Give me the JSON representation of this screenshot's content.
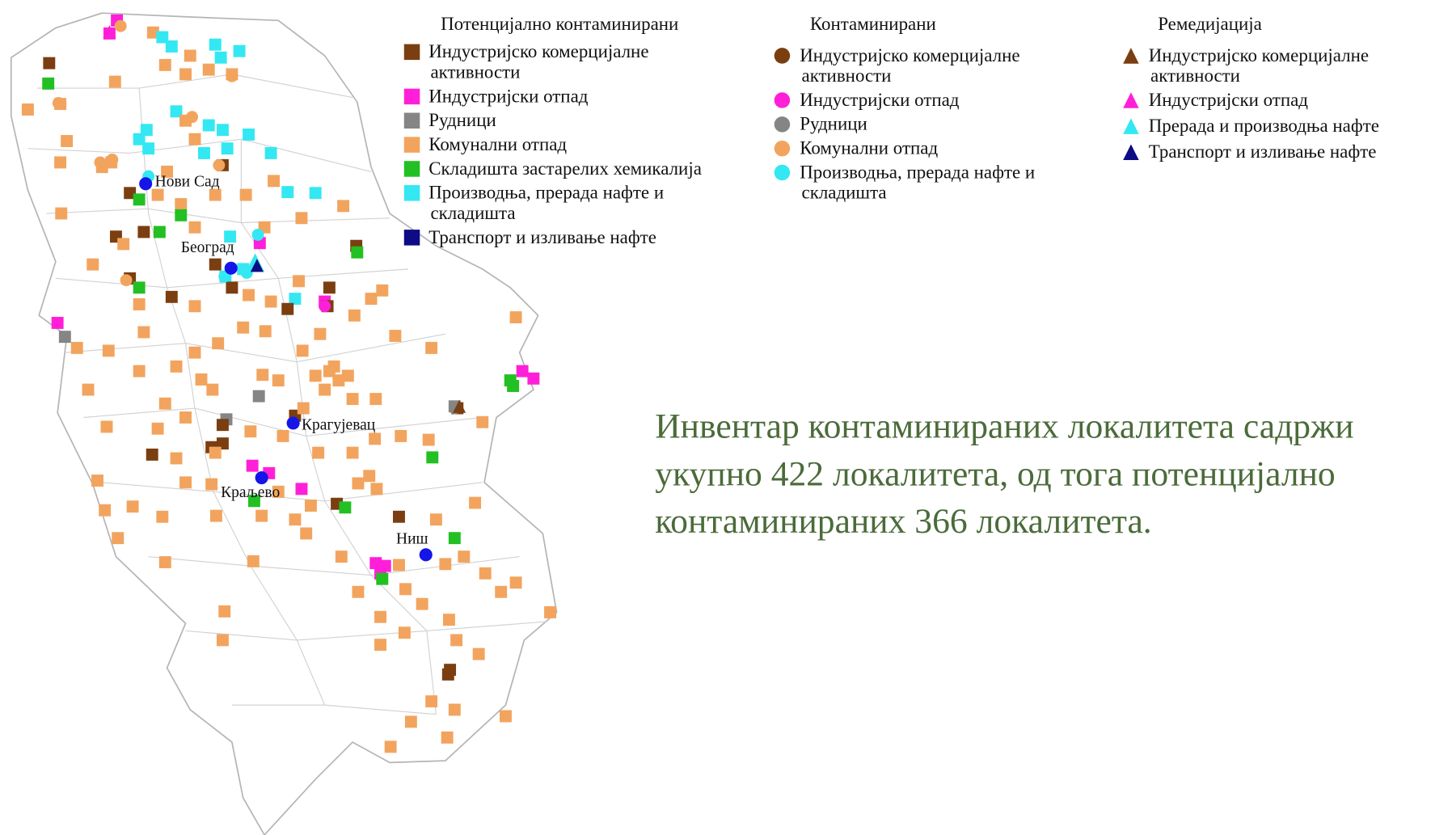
{
  "legend": {
    "groups": [
      {
        "title": "Потенцијално контаминирани",
        "shape": "square",
        "items": [
          {
            "lines": [
              "Индустријско комерцијалне",
              "активности"
            ],
            "color": "#7a3e10"
          },
          {
            "lines": [
              "Индустријски отпад"
            ],
            "color": "#ff1fd8"
          },
          {
            "lines": [
              "Рудници"
            ],
            "color": "#858585"
          },
          {
            "lines": [
              "Комунални отпад"
            ],
            "color": "#f2a45e"
          },
          {
            "lines": [
              "Складишта застарелих хемикалија"
            ],
            "color": "#22c022"
          },
          {
            "lines": [
              "Производња, прерада нафте и",
              "складишта"
            ],
            "color": "#33e8f2"
          },
          {
            "lines": [
              "Транспорт и изливање нафте"
            ],
            "color": "#0c0c85"
          }
        ]
      },
      {
        "title": "Контаминирани",
        "shape": "circle",
        "items": [
          {
            "lines": [
              "Индустријско комерцијалне",
              "активности"
            ],
            "color": "#7a3e10"
          },
          {
            "lines": [
              "Индустријски отпад"
            ],
            "color": "#ff1fd8"
          },
          {
            "lines": [
              "Рудници"
            ],
            "color": "#858585"
          },
          {
            "lines": [
              "Комунални отпад"
            ],
            "color": "#f2a45e"
          },
          {
            "lines": [
              "Производња, прерада нафте и",
              "складишта"
            ],
            "color": "#33e8f2"
          }
        ]
      },
      {
        "title": "Ремедијација",
        "shape": "triangle",
        "items": [
          {
            "lines": [
              "Индустријско комерцијалне",
              "активности"
            ],
            "color": "#7a3e10"
          },
          {
            "lines": [
              "Индустријски отпад"
            ],
            "color": "#ff1fd8"
          },
          {
            "lines": [
              "Прерада и производња нафте"
            ],
            "color": "#33e8f2"
          },
          {
            "lines": [
              "Транспорт и изливање нафте"
            ],
            "color": "#0c0c85"
          }
        ]
      }
    ]
  },
  "cities": [
    "Нови Сад",
    "Београд",
    "Крагујевац",
    "Краљево",
    "Ниш"
  ],
  "summary": [
    "Инвентар контаминираних локалитета садржи",
    "укупно 422 локалитета, од тога потенцијално",
    "контаминираних 366 локалитета."
  ]
}
